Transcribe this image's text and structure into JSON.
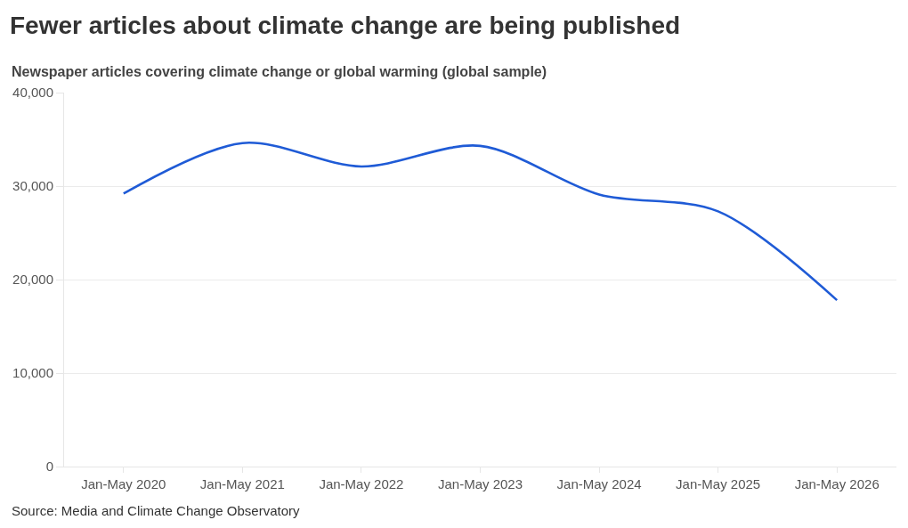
{
  "chart_data": {
    "type": "line",
    "title": "Fewer articles about climate change are being published",
    "subtitle": "Newspaper articles covering climate change or global warming (global sample)",
    "annotations": [
      "Source: Media and Climate Change Observatory"
    ],
    "categories": [
      "Jan-May 2020",
      "Jan-May 2021",
      "Jan-May 2022",
      "Jan-May 2023",
      "Jan-May 2024",
      "Jan-May 2025",
      "Jan-May 2026"
    ],
    "series": [
      {
        "color": "#1f5bd6",
        "values": [
          29200,
          34600,
          32100,
          34300,
          29100,
          27300,
          17800
        ]
      }
    ],
    "ylim": [
      0,
      40000
    ],
    "yticks": [
      0,
      {
        "value": 10000,
        "label": "10,000"
      },
      {
        "value": 20000,
        "label": "20,000"
      },
      {
        "value": 30000,
        "label": "30,000"
      },
      {
        "value": 40000,
        "label": "40,000"
      }
    ],
    "grid": "y",
    "marker": "none",
    "line_style": "solid"
  }
}
